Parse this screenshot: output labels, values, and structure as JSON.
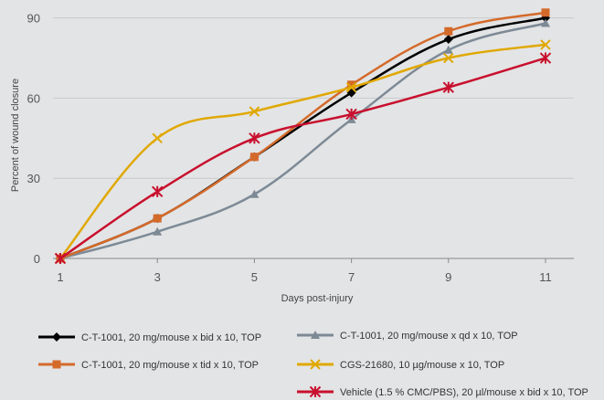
{
  "chart_data": {
    "type": "line",
    "x": [
      1,
      3,
      5,
      7,
      9,
      11
    ],
    "xlabel": "Days post-injury",
    "ylabel": "Percent of wound closure",
    "ylim": [
      0,
      95
    ],
    "yticks": [
      0,
      30,
      60,
      90
    ],
    "xticks": [
      1,
      3,
      5,
      7,
      9,
      11
    ],
    "grid": true,
    "legend_position": "bottom",
    "series": [
      {
        "name": "C-T-1001, 20 mg/mouse x bid x 10, TOP",
        "values": [
          0,
          15,
          38,
          62,
          82,
          90
        ],
        "color": "#000000",
        "marker": "diamond"
      },
      {
        "name": "C-T-1001, 20 mg/mouse x qd x 10, TOP",
        "values": [
          0,
          10,
          24,
          52,
          78,
          88
        ],
        "color": "#7d8a96",
        "marker": "triangle"
      },
      {
        "name": "C-T-1001, 20 mg/mouse x tid x 10, TOP",
        "values": [
          0,
          15,
          38,
          65,
          85,
          92
        ],
        "color": "#d46a2a",
        "marker": "square"
      },
      {
        "name": "CGS-21680, 10 µg/mouse x 10, TOP",
        "values": [
          0,
          45,
          55,
          64,
          75,
          80
        ],
        "color": "#e0a800",
        "marker": "x"
      },
      {
        "name": "Vehicle (1.5 % CMC/PBS), 20 µl/mouse x bid x 10, TOP",
        "values": [
          0,
          25,
          45,
          54,
          64,
          75
        ],
        "color": "#c8102e",
        "marker": "asterisk"
      }
    ]
  }
}
